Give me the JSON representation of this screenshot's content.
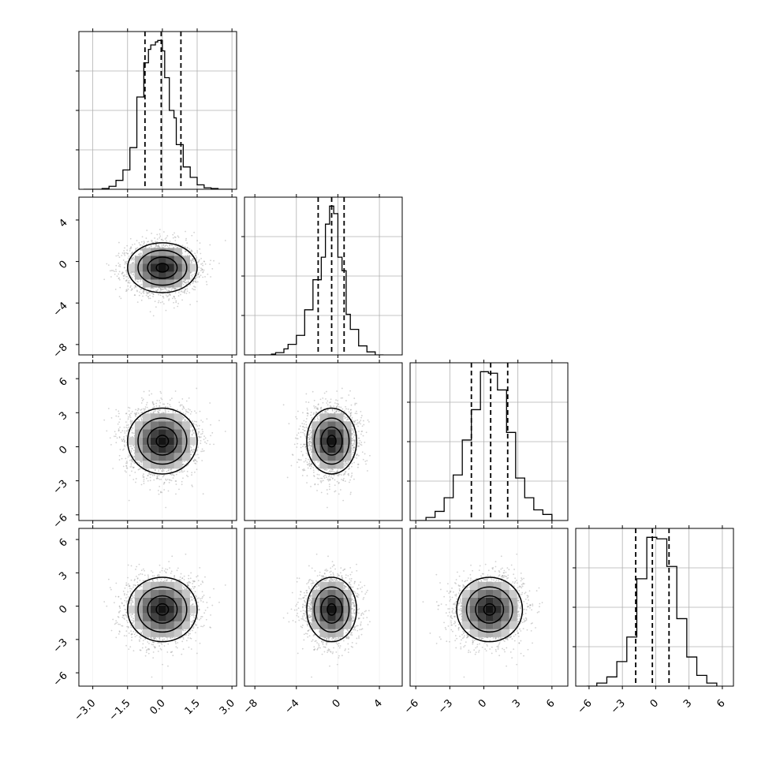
{
  "chart_data": {
    "type": "corner",
    "grid": true,
    "parameters": [
      {
        "range": [
          -3.6,
          3.2
        ],
        "ticks": [
          -3.0,
          -1.5,
          0.0,
          1.5,
          3.0
        ],
        "tick_labels": [
          "−3.0",
          "−1.5",
          "0.0",
          "1.5",
          "3.0"
        ],
        "quantiles": [
          -0.75,
          -0.05,
          0.8
        ],
        "hist_edges": [
          -3.4,
          -2.6,
          -2.3,
          -2.0,
          -1.7,
          -1.4,
          -1.1,
          -0.8,
          -0.6,
          -0.5,
          -0.3,
          -0.2,
          0.0,
          0.1,
          0.3,
          0.5,
          0.6,
          0.9,
          1.2,
          1.5,
          1.8,
          2.1,
          2.4,
          2.7,
          3.0
        ],
        "hist_values": [
          0.0,
          0.005,
          0.02,
          0.06,
          0.13,
          0.28,
          0.62,
          0.85,
          0.94,
          0.97,
          0.99,
          1.0,
          0.93,
          0.75,
          0.53,
          0.48,
          0.3,
          0.15,
          0.08,
          0.03,
          0.01,
          0.005,
          0.0,
          0.0
        ],
        "center": 0.0,
        "sd": 0.75
      },
      {
        "range": [
          -9.0,
          6.2
        ],
        "ticks": [
          -8,
          -4,
          0,
          4
        ],
        "tick_labels": [
          "−8",
          "−4",
          "0",
          "4"
        ],
        "quantiles": [
          -1.9,
          -0.6,
          0.6
        ],
        "hist_edges": [
          -7.6,
          -6.4,
          -6.0,
          -5.2,
          -4.8,
          -4.0,
          -3.2,
          -2.4,
          -1.6,
          -1.2,
          -0.8,
          -0.4,
          0.0,
          0.4,
          0.8,
          1.2,
          2.0,
          2.8,
          3.6,
          4.4
        ],
        "hist_values": [
          0.0,
          0.005,
          0.015,
          0.04,
          0.07,
          0.13,
          0.3,
          0.5,
          0.65,
          0.87,
          0.99,
          0.94,
          0.65,
          0.56,
          0.27,
          0.17,
          0.06,
          0.02,
          0.0
        ],
        "center": -0.6,
        "sd": 1.2
      },
      {
        "range": [
          -6.5,
          7.4
        ],
        "ticks": [
          -6,
          -3,
          0,
          3,
          6
        ],
        "tick_labels": [
          "−6",
          "−3",
          "0",
          "3",
          "6"
        ],
        "quantiles": [
          -1.1,
          0.6,
          2.1
        ],
        "hist_edges": [
          -5.9,
          -5.1,
          -4.3,
          -3.5,
          -2.7,
          -1.9,
          -1.1,
          -0.3,
          0.4,
          1.2,
          2.0,
          2.8,
          3.6,
          4.4,
          5.2,
          6.0
        ],
        "hist_values": [
          0.0,
          0.02,
          0.06,
          0.15,
          0.3,
          0.53,
          0.73,
          0.98,
          0.97,
          0.86,
          0.58,
          0.28,
          0.15,
          0.07,
          0.04
        ],
        "center": 0.5,
        "sd": 1.45
      },
      {
        "range": [
          -7.2,
          7.0
        ],
        "ticks": [
          -6,
          -3,
          0,
          3,
          6
        ],
        "tick_labels": [
          "−6",
          "−3",
          "0",
          "3",
          "6"
        ],
        "quantiles": [
          -1.8,
          -0.3,
          1.2
        ],
        "hist_edges": [
          -6.2,
          -5.3,
          -4.4,
          -3.5,
          -2.6,
          -1.7,
          -0.8,
          0.1,
          1.0,
          1.9,
          2.8,
          3.7,
          4.6,
          5.5
        ],
        "hist_values": [
          0.0,
          0.02,
          0.06,
          0.16,
          0.32,
          0.7,
          0.97,
          0.96,
          0.78,
          0.44,
          0.19,
          0.07,
          0.02
        ],
        "center": -0.3,
        "sd": 1.45
      }
    ]
  }
}
